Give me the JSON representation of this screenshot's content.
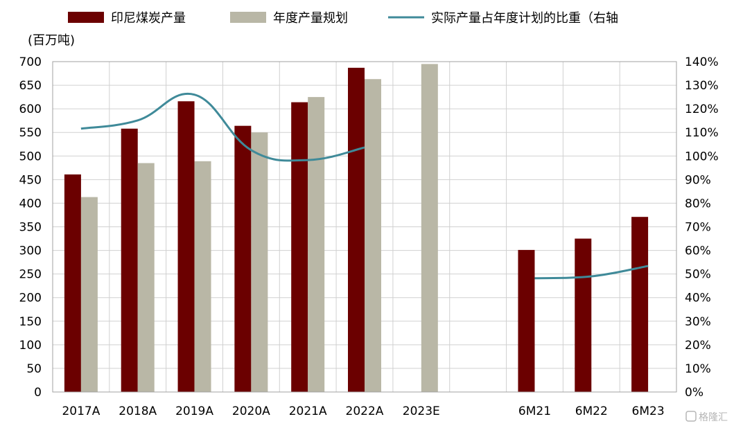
{
  "chart_data": {
    "type": "bar",
    "categories": [
      "2017A",
      "2018A",
      "2019A",
      "2020A",
      "2021A",
      "2022A",
      "2023E",
      "",
      "6M21",
      "6M22",
      "6M23"
    ],
    "series": [
      {
        "name": "印尼煤炭产量",
        "type": "bar",
        "axis": "left",
        "color": "#6b0000",
        "values": [
          461,
          558,
          616,
          564,
          614,
          687,
          null,
          null,
          301,
          325,
          371
        ]
      },
      {
        "name": "年度产量规划",
        "type": "bar",
        "axis": "left",
        "color": "#b9b7a6",
        "values": [
          413,
          485,
          489,
          550,
          625,
          663,
          695,
          null,
          null,
          null,
          null
        ]
      },
      {
        "name": "实际产量占年度计划的比重（右轴",
        "type": "line",
        "axis": "right",
        "color": "#3f8a99",
        "values": [
          111.6,
          115.1,
          126.0,
          102.5,
          98.3,
          103.6,
          null,
          null,
          48.2,
          49.0,
          53.4
        ]
      }
    ],
    "left_axis": {
      "unit": "(百万吨)",
      "min": 0,
      "max": 700,
      "step": 50,
      "tick_labels": [
        "0",
        "50",
        "100",
        "150",
        "200",
        "250",
        "300",
        "350",
        "400",
        "450",
        "500",
        "550",
        "600",
        "650",
        "700"
      ]
    },
    "right_axis": {
      "min": 0,
      "max": 140,
      "step": 10,
      "tick_labels": [
        "0%",
        "10%",
        "20%",
        "30%",
        "40%",
        "50%",
        "60%",
        "70%",
        "80%",
        "90%",
        "100%",
        "110%",
        "120%",
        "130%",
        "140%"
      ]
    },
    "grid": true,
    "legend_position": "top"
  },
  "watermark": {
    "label": "格隆汇"
  }
}
